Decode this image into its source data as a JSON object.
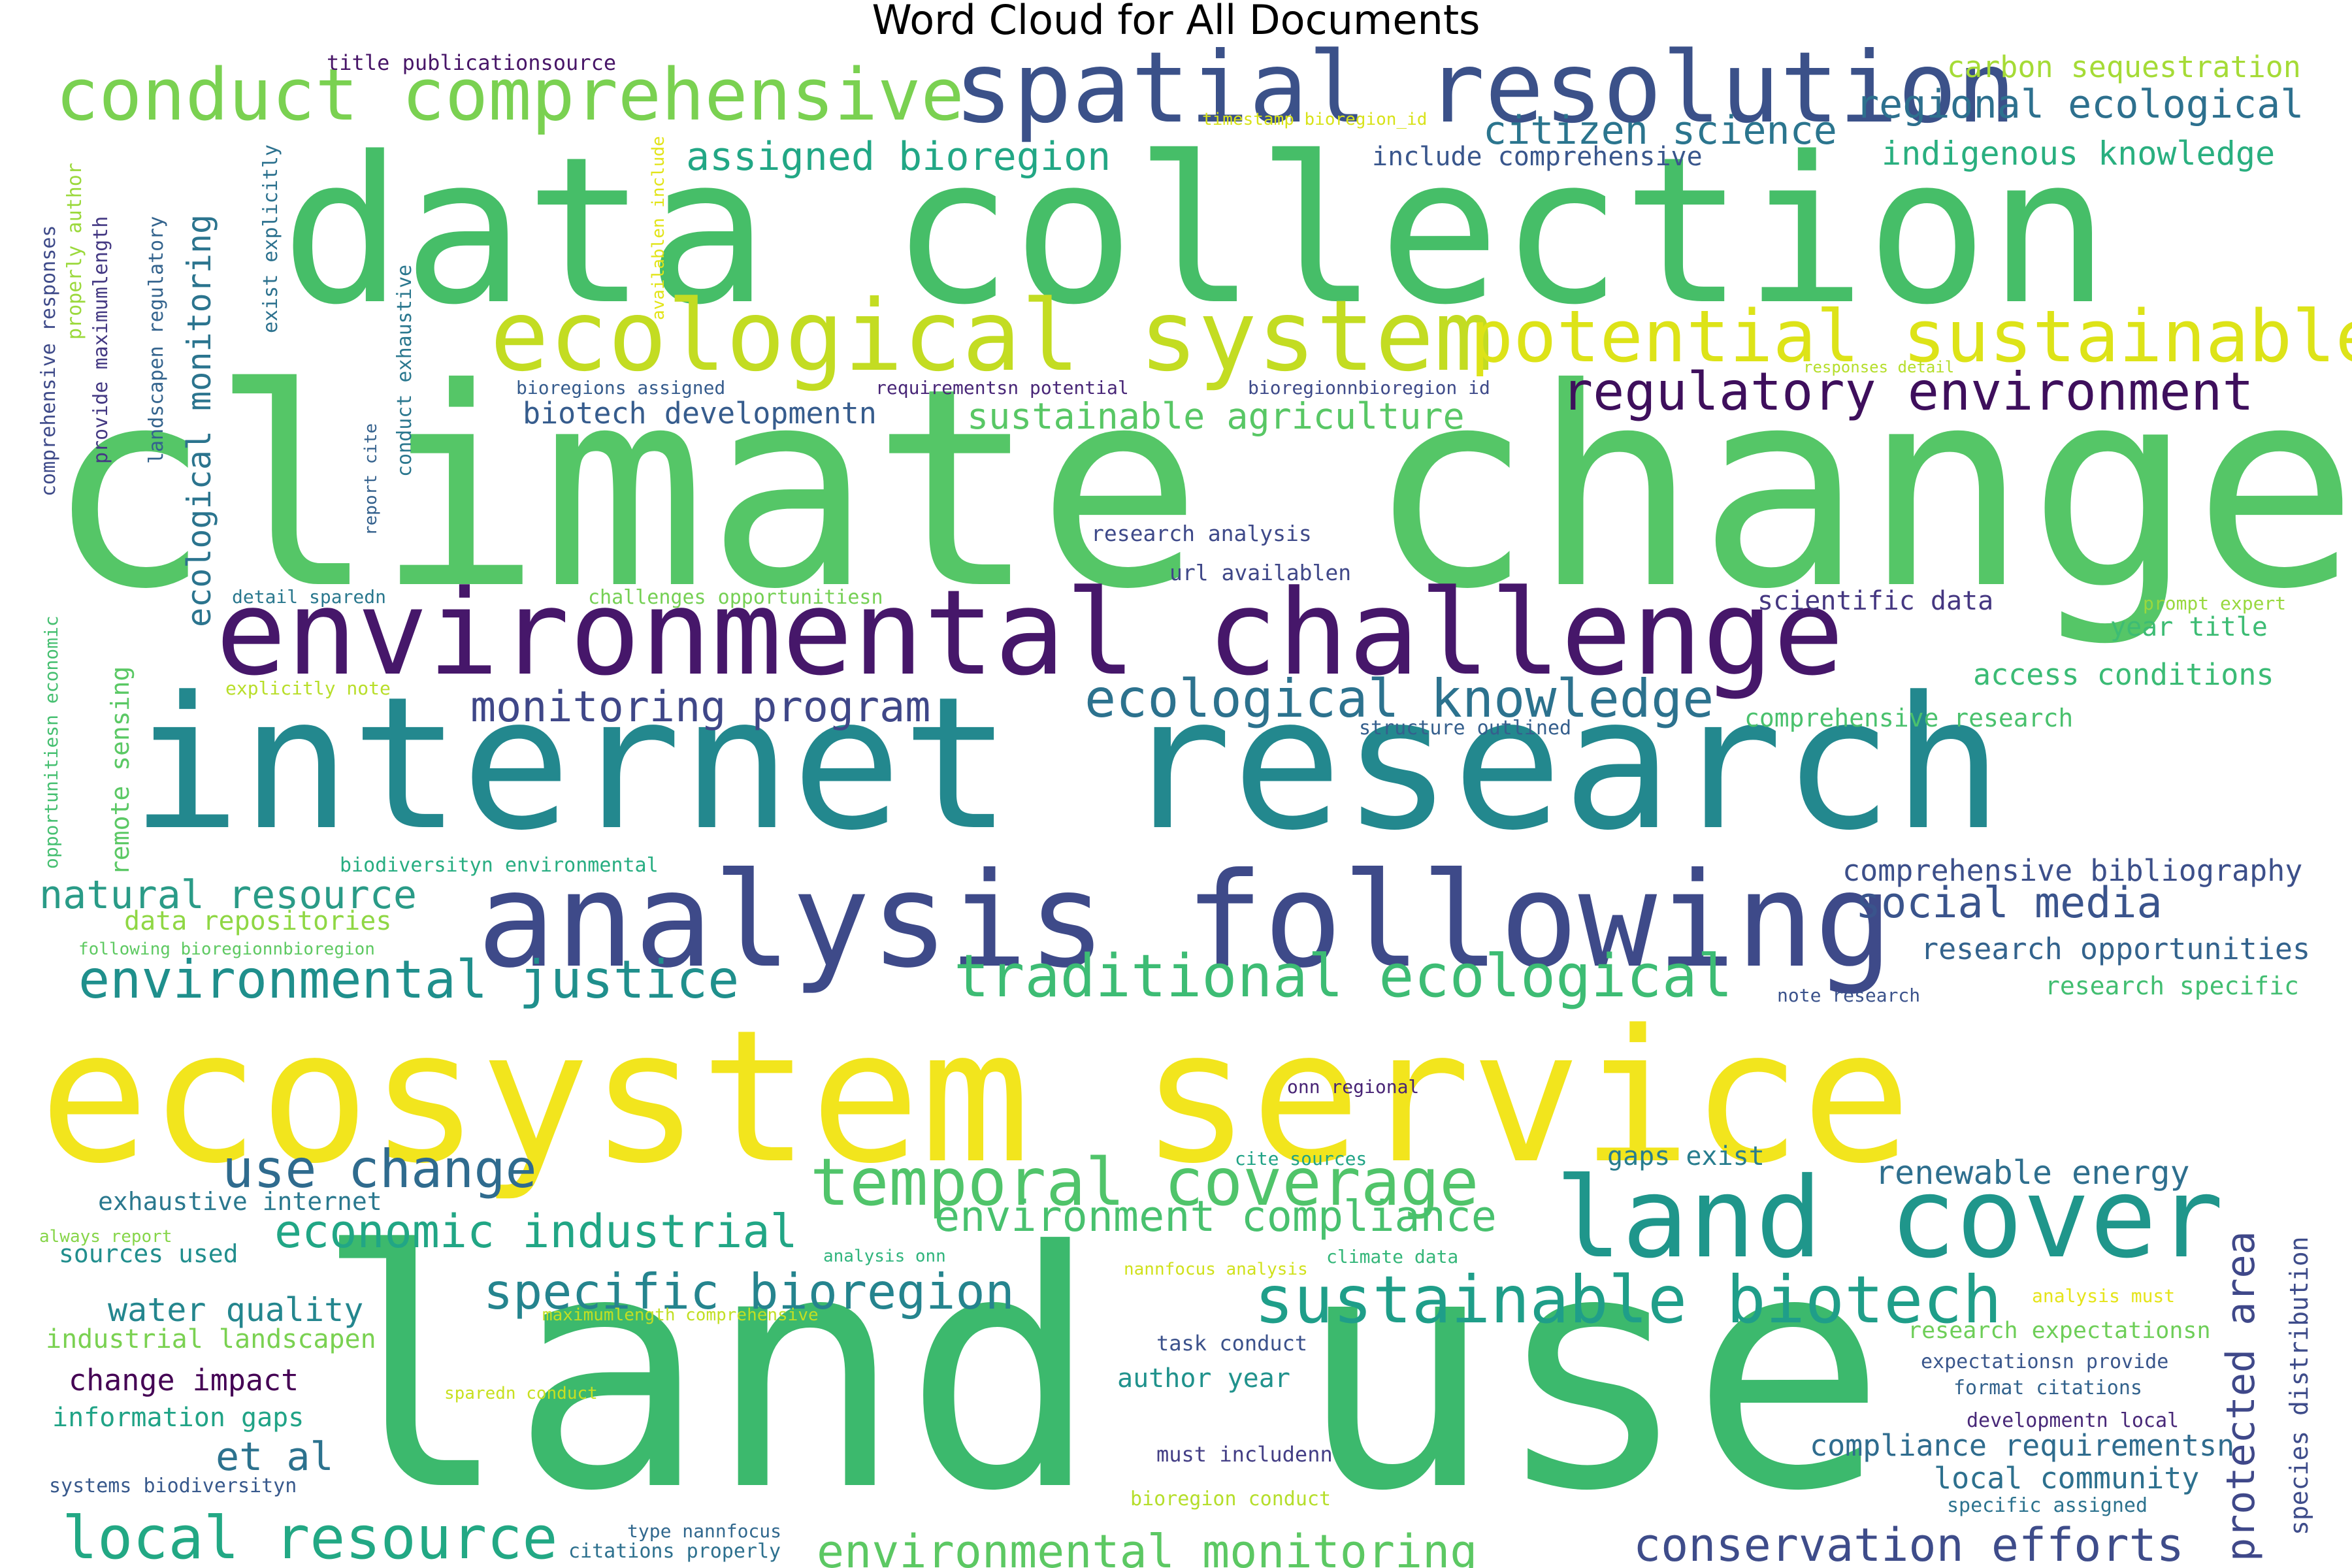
{
  "title": "Word Cloud for All Documents",
  "palette": [
    "#440154",
    "#3b528b",
    "#21918c",
    "#5ec962",
    "#fde725"
  ],
  "words": [
    {
      "text": "climate change",
      "color": "#55c667"
    },
    {
      "text": "land use",
      "color": "#3cb96d"
    },
    {
      "text": "data collection",
      "color": "#46be68"
    },
    {
      "text": "internet research",
      "color": "#23888e"
    },
    {
      "text": "ecosystem service",
      "color": "#f2e51d"
    },
    {
      "text": "analysis following",
      "color": "#3e4a89"
    },
    {
      "text": "environmental challenge",
      "color": "#46176a"
    },
    {
      "text": "spatial resolution",
      "color": "#3b5189"
    },
    {
      "text": "ecological system",
      "color": "#c3dc22"
    },
    {
      "text": "conduct comprehensive",
      "color": "#7ad151"
    },
    {
      "text": "land cover",
      "color": "#1f968b"
    },
    {
      "text": "potential sustainable",
      "color": "#dde318"
    },
    {
      "text": "sustainable biotech",
      "color": "#1f9e89"
    },
    {
      "text": "temporal coverage",
      "color": "#50c46a"
    },
    {
      "text": "traditional ecological",
      "color": "#3dbc74"
    },
    {
      "text": "regulatory environment",
      "color": "#3e0f5c"
    },
    {
      "text": "ecological knowledge",
      "color": "#2c728e"
    },
    {
      "text": "environmental justice",
      "color": "#1f8f8c"
    },
    {
      "text": "local resource",
      "color": "#22a884"
    },
    {
      "text": "environmental monitoring",
      "color": "#5cc863"
    },
    {
      "text": "conservation efforts",
      "color": "#3e4c8a"
    },
    {
      "text": "specific bioregion",
      "color": "#25848e"
    },
    {
      "text": "use change",
      "color": "#2f6b8e"
    },
    {
      "text": "monitoring program",
      "color": "#3f4788"
    },
    {
      "text": "social media",
      "color": "#3a548c"
    },
    {
      "text": "economic industrial",
      "color": "#21a685"
    },
    {
      "text": "environment compliance",
      "color": "#48c16e"
    },
    {
      "text": "natural resource",
      "color": "#2a9b87"
    },
    {
      "text": "regional ecological",
      "color": "#2d708e"
    },
    {
      "text": "assigned bioregion",
      "color": "#22a785"
    },
    {
      "text": "citizen science",
      "color": "#2b758e"
    },
    {
      "text": "ecological monitoring",
      "color": "#2b748e"
    },
    {
      "text": "protected area",
      "color": "#3f4889"
    },
    {
      "text": "indigenous knowledge",
      "color": "#29af7f"
    },
    {
      "text": "carbon sequestration",
      "color": "#a5db36"
    },
    {
      "text": "sustainable agriculture",
      "color": "#58c765"
    },
    {
      "text": "biotech developmentn",
      "color": "#365c8d"
    },
    {
      "text": "renewable energy",
      "color": "#2e6f8e"
    },
    {
      "text": "et al",
      "color": "#2c728e"
    },
    {
      "text": "water quality",
      "color": "#24868e"
    },
    {
      "text": "access conditions",
      "color": "#3bbb75"
    },
    {
      "text": "comprehensive bibliography",
      "color": "#3c4f8a"
    },
    {
      "text": "research opportunities",
      "color": "#33638d"
    },
    {
      "text": "include comprehensive",
      "color": "#39568c"
    },
    {
      "text": "data repositories",
      "color": "#8fd744"
    },
    {
      "text": "local community",
      "color": "#2d708e"
    },
    {
      "text": "compliance requirementsn",
      "color": "#2f6c8e"
    },
    {
      "text": "change impact",
      "color": "#440154"
    },
    {
      "text": "information gaps",
      "color": "#20a386"
    },
    {
      "text": "industrial landscapen",
      "color": "#7ad151"
    },
    {
      "text": "exhaustive internet",
      "color": "#2a788e"
    },
    {
      "text": "sources used",
      "color": "#218e8d"
    },
    {
      "text": "remote sensing",
      "color": "#5ac864"
    },
    {
      "text": "scientific data",
      "color": "#453781"
    },
    {
      "text": "year title",
      "color": "#3dbc74"
    },
    {
      "text": "gaps exist",
      "color": "#287d8e"
    },
    {
      "text": "author year",
      "color": "#20928c"
    },
    {
      "text": "research specific",
      "color": "#42be71"
    },
    {
      "text": "research expectationsn",
      "color": "#6ece58"
    },
    {
      "text": "comprehensive research",
      "color": "#4ac16d"
    },
    {
      "text": "species distribution",
      "color": "#3e4c8a"
    },
    {
      "text": "systems biodiversityn",
      "color": "#38598c"
    },
    {
      "text": "title publicationsource",
      "color": "#481668"
    },
    {
      "text": "research analysis",
      "color": "#3e4989"
    },
    {
      "text": "url availablen",
      "color": "#3f4788"
    },
    {
      "text": "task conduct",
      "color": "#3b518b"
    },
    {
      "text": "must includenn",
      "color": "#433e85"
    },
    {
      "text": "format citations",
      "color": "#33638d"
    },
    {
      "text": "developmentn local",
      "color": "#482878"
    },
    {
      "text": "expectationsn provide",
      "color": "#39568c"
    },
    {
      "text": "specific assigned",
      "color": "#2c728e"
    },
    {
      "text": "structure outlined",
      "color": "#355f8d"
    },
    {
      "text": "biodiversityn environmental",
      "color": "#27ad81"
    },
    {
      "text": "challenges opportunitiesn",
      "color": "#75d054"
    },
    {
      "text": "detail sparedn",
      "color": "#2a788e"
    },
    {
      "text": "explicitly note",
      "color": "#b8de29"
    },
    {
      "text": "following bioregionnbioregion",
      "color": "#5ec962"
    },
    {
      "text": "bioregions assigned",
      "color": "#365c8d"
    },
    {
      "text": "requirementsn potential",
      "color": "#482677"
    },
    {
      "text": "bioregionnbioregion id",
      "color": "#3e4a89"
    },
    {
      "text": "timestamp bioregion_id",
      "color": "#d8e219"
    },
    {
      "text": "responses detail",
      "color": "#b5de2b"
    },
    {
      "text": "prompt expert",
      "color": "#98d83e"
    },
    {
      "text": "note research",
      "color": "#3b528b"
    },
    {
      "text": "onn regional",
      "color": "#482475"
    },
    {
      "text": "cite sources",
      "color": "#20a386"
    },
    {
      "text": "climate data",
      "color": "#34b679"
    },
    {
      "text": "analysis onn",
      "color": "#2fb47c"
    },
    {
      "text": "nannfocus analysis",
      "color": "#d0e11c"
    },
    {
      "text": "analysis must",
      "color": "#e5e419"
    },
    {
      "text": "always report",
      "color": "#86d549"
    },
    {
      "text": "maximumlength comprehensive",
      "color": "#c2df23"
    },
    {
      "text": "sparedn conduct",
      "color": "#c8e020"
    },
    {
      "text": "bioregion conduct",
      "color": "#b5de2b"
    },
    {
      "text": "type nannfocus",
      "color": "#31688e"
    },
    {
      "text": "citations properly",
      "color": "#2d708e"
    },
    {
      "text": "comprehensive responses",
      "color": "#3e4a89"
    },
    {
      "text": "provide maximumlength",
      "color": "#443983"
    },
    {
      "text": "properly author",
      "color": "#9bd93c"
    },
    {
      "text": "landscapen regulatory",
      "color": "#33638d"
    },
    {
      "text": "exist explicitly",
      "color": "#2c718e"
    },
    {
      "text": "conduct exhaustive",
      "color": "#2a778e"
    },
    {
      "text": "report cite",
      "color": "#34618d"
    },
    {
      "text": "opportunitiesn economic",
      "color": "#45bf70"
    },
    {
      "text": "availablen include",
      "color": "#e2e418"
    }
  ]
}
